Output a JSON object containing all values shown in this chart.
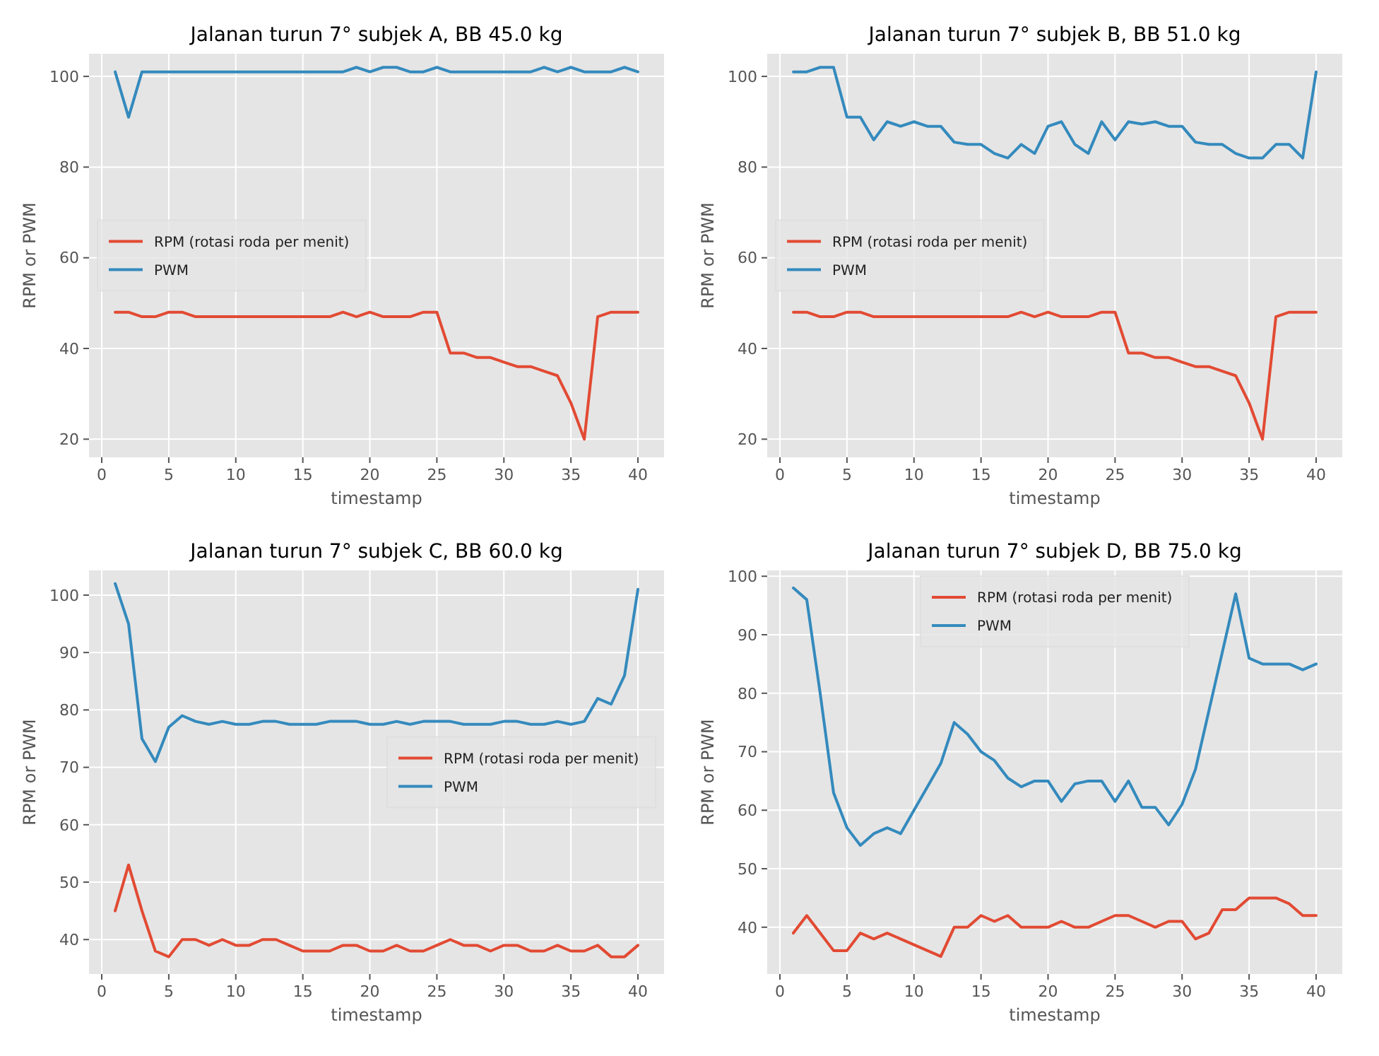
{
  "chart_data": [
    {
      "type": "line",
      "title": "Jalanan turun 7° subjek A, BB 45.0 kg",
      "xlabel": "timestamp",
      "ylabel": "RPM or PWM",
      "x": [
        1,
        2,
        3,
        4,
        5,
        6,
        7,
        8,
        9,
        10,
        11,
        12,
        13,
        14,
        15,
        16,
        17,
        18,
        19,
        20,
        21,
        22,
        23,
        24,
        25,
        26,
        27,
        28,
        29,
        30,
        31,
        32,
        33,
        34,
        35,
        36,
        37,
        38,
        39,
        40
      ],
      "xlim": [
        -0.95,
        41.95
      ],
      "xticks": [
        0,
        5,
        10,
        15,
        20,
        25,
        30,
        35,
        40
      ],
      "ylim": [
        16,
        105
      ],
      "yticks": [
        20,
        40,
        60,
        80,
        100
      ],
      "grid": true,
      "legend": "center left",
      "series": [
        {
          "name": "RPM (rotasi roda per menit)",
          "color": "#e24a33",
          "values": [
            48,
            48,
            47,
            47,
            48,
            48,
            47,
            47,
            47,
            47,
            47,
            47,
            47,
            47,
            47,
            47,
            47,
            48,
            47,
            48,
            47,
            47,
            47,
            48,
            48,
            39,
            39,
            38,
            38,
            37,
            36,
            36,
            35,
            34,
            28,
            20,
            47,
            48,
            48,
            48
          ]
        },
        {
          "name": "PWM",
          "color": "#348abd",
          "values": [
            101,
            91,
            101,
            101,
            101,
            101,
            101,
            101,
            101,
            101,
            101,
            101,
            101,
            101,
            101,
            101,
            101,
            101,
            102,
            101,
            102,
            102,
            101,
            101,
            102,
            101,
            101,
            101,
            101,
            101,
            101,
            101,
            102,
            101,
            102,
            101,
            101,
            101,
            102,
            101
          ]
        }
      ]
    },
    {
      "type": "line",
      "title": "Jalanan turun 7° subjek B, BB 51.0 kg",
      "xlabel": "timestamp",
      "ylabel": "RPM or PWM",
      "x": [
        1,
        2,
        3,
        4,
        5,
        6,
        7,
        8,
        9,
        10,
        11,
        12,
        13,
        14,
        15,
        16,
        17,
        18,
        19,
        20,
        21,
        22,
        23,
        24,
        25,
        26,
        27,
        28,
        29,
        30,
        31,
        32,
        33,
        34,
        35,
        36,
        37,
        38,
        39,
        40
      ],
      "xlim": [
        -0.95,
        41.95
      ],
      "xticks": [
        0,
        5,
        10,
        15,
        20,
        25,
        30,
        35,
        40
      ],
      "ylim": [
        16,
        105
      ],
      "yticks": [
        20,
        40,
        60,
        80,
        100
      ],
      "grid": true,
      "legend": "center left",
      "series": [
        {
          "name": "RPM (rotasi roda per menit)",
          "color": "#e24a33",
          "values": [
            48,
            48,
            47,
            47,
            48,
            48,
            47,
            47,
            47,
            47,
            47,
            47,
            47,
            47,
            47,
            47,
            47,
            48,
            47,
            48,
            47,
            47,
            47,
            48,
            48,
            39,
            39,
            38,
            38,
            37,
            36,
            36,
            35,
            34,
            28,
            20,
            47,
            48,
            48,
            48
          ]
        },
        {
          "name": "PWM",
          "color": "#348abd",
          "values": [
            101,
            101,
            102,
            102,
            91,
            91,
            86,
            90,
            89,
            90,
            89,
            89,
            85.5,
            85,
            85,
            83,
            82,
            85,
            83,
            89,
            90,
            85,
            83,
            90,
            86,
            90,
            89.5,
            90,
            89,
            89,
            85.5,
            85,
            85,
            83,
            82,
            82,
            85,
            85,
            82,
            101
          ]
        }
      ]
    },
    {
      "type": "line",
      "title": "Jalanan turun 7° subjek C, BB 60.0 kg",
      "xlabel": "timestamp",
      "ylabel": "RPM or PWM",
      "x": [
        1,
        2,
        3,
        4,
        5,
        6,
        7,
        8,
        9,
        10,
        11,
        12,
        13,
        14,
        15,
        16,
        17,
        18,
        19,
        20,
        21,
        22,
        23,
        24,
        25,
        26,
        27,
        28,
        29,
        30,
        31,
        32,
        33,
        34,
        35,
        36,
        37,
        38,
        39,
        40
      ],
      "xlim": [
        -0.95,
        41.95
      ],
      "xticks": [
        0,
        5,
        10,
        15,
        20,
        25,
        30,
        35,
        40
      ],
      "ylim": [
        34,
        104.3
      ],
      "yticks": [
        40,
        50,
        60,
        70,
        80,
        90,
        100
      ],
      "grid": true,
      "legend": "center right",
      "series": [
        {
          "name": "RPM (rotasi roda per menit)",
          "color": "#e24a33",
          "values": [
            45,
            53,
            45,
            38,
            37,
            40,
            40,
            39,
            40,
            39,
            39,
            40,
            40,
            39,
            38,
            38,
            38,
            39,
            39,
            38,
            38,
            39,
            38,
            38,
            39,
            40,
            39,
            39,
            38,
            39,
            39,
            38,
            38,
            39,
            38,
            38,
            39,
            37,
            37,
            39
          ]
        },
        {
          "name": "PWM",
          "color": "#348abd",
          "values": [
            102,
            95,
            75,
            71,
            77,
            79,
            78,
            77.5,
            78,
            77.5,
            77.5,
            78,
            78,
            77.5,
            77.5,
            77.5,
            78,
            78,
            78,
            77.5,
            77.5,
            78,
            77.5,
            78,
            78,
            78,
            77.5,
            77.5,
            77.5,
            78,
            78,
            77.5,
            77.5,
            78,
            77.5,
            78,
            82,
            81,
            86,
            101
          ]
        }
      ]
    },
    {
      "type": "line",
      "title": "Jalanan turun 7° subjek D, BB 75.0 kg",
      "xlabel": "timestamp",
      "ylabel": "RPM or PWM",
      "x": [
        1,
        2,
        3,
        4,
        5,
        6,
        7,
        8,
        9,
        10,
        11,
        12,
        13,
        14,
        15,
        16,
        17,
        18,
        19,
        20,
        21,
        22,
        23,
        24,
        25,
        26,
        27,
        28,
        29,
        30,
        31,
        32,
        33,
        34,
        35,
        36,
        37,
        38,
        39,
        40
      ],
      "xlim": [
        -0.95,
        41.95
      ],
      "xticks": [
        0,
        5,
        10,
        15,
        20,
        25,
        30,
        35,
        40
      ],
      "ylim": [
        32,
        101
      ],
      "yticks": [
        40,
        50,
        60,
        70,
        80,
        90,
        100
      ],
      "grid": true,
      "legend": "top center",
      "series": [
        {
          "name": "RPM (rotasi roda per menit)",
          "color": "#e24a33",
          "values": [
            39,
            42,
            39,
            36,
            36,
            39,
            38,
            39,
            38,
            37,
            36,
            35,
            40,
            40,
            42,
            41,
            42,
            40,
            40,
            40,
            41,
            40,
            40,
            41,
            42,
            42,
            41,
            40,
            41,
            41,
            38,
            39,
            43,
            43,
            45,
            45,
            45,
            44,
            42,
            42
          ]
        },
        {
          "name": "PWM",
          "color": "#348abd",
          "values": [
            98,
            96,
            80,
            63,
            57,
            54,
            56,
            57,
            56,
            60,
            64,
            68,
            75,
            73,
            70,
            68.5,
            65.5,
            64,
            65,
            65,
            61.5,
            64.5,
            65,
            65,
            61.5,
            65,
            60.5,
            60.5,
            57.5,
            61,
            67,
            77,
            87,
            97,
            86,
            85,
            85,
            85,
            84,
            85
          ]
        }
      ]
    }
  ]
}
